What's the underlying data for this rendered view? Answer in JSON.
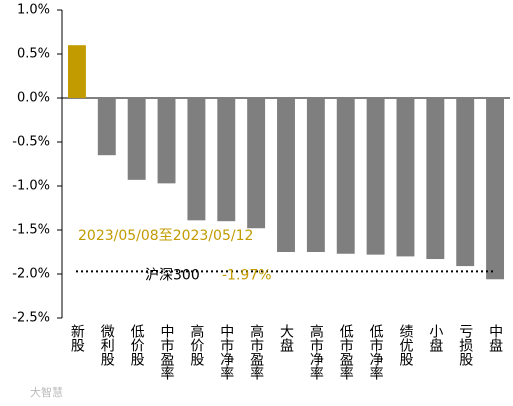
{
  "chart_data": {
    "type": "bar",
    "categories": [
      "新股",
      "微利股",
      "低价股",
      "中市盈率",
      "高价股",
      "中市净率",
      "高市盈率",
      "大盘",
      "高市净率",
      "低市盈率",
      "低市净率",
      "绩优股",
      "小盘",
      "亏损股",
      "中盘"
    ],
    "values": [
      0.6,
      -0.65,
      -0.93,
      -0.97,
      -1.39,
      -1.4,
      -1.48,
      -1.75,
      -1.75,
      -1.77,
      -1.78,
      -1.8,
      -1.83,
      -1.91,
      -2.06
    ],
    "color": "#7f7f7f",
    "positive_color": "#c29b00",
    "ylim": [
      -2.5,
      1.0
    ],
    "yticks": [
      {
        "value": 1.0,
        "label": "1.0%"
      },
      {
        "value": 0.5,
        "label": "0.5%"
      },
      {
        "value": 0.0,
        "label": "0.0%"
      },
      {
        "value": -0.5,
        "label": "-0.5%"
      },
      {
        "value": -1.0,
        "label": "-1.0%"
      },
      {
        "value": -1.5,
        "label": "-1.5%"
      },
      {
        "value": -2.0,
        "label": "-2.0%"
      },
      {
        "value": -2.5,
        "label": "-2.5%"
      }
    ],
    "annotation": "2023/05/08至2023/05/12",
    "reference": {
      "label": "沪深300",
      "value": -1.97,
      "value_label": "-1.97%"
    },
    "watermark": "大智慧"
  }
}
